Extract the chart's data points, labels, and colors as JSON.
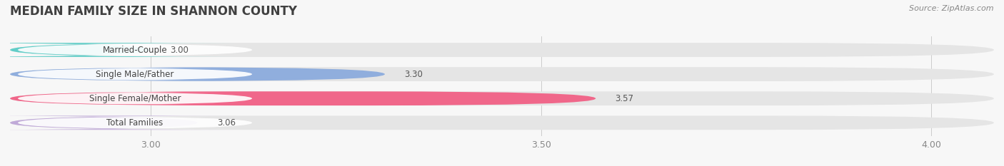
{
  "title": "MEDIAN FAMILY SIZE IN SHANNON COUNTY",
  "source": "Source: ZipAtlas.com",
  "categories": [
    "Married-Couple",
    "Single Male/Father",
    "Single Female/Mother",
    "Total Families"
  ],
  "values": [
    3.0,
    3.3,
    3.57,
    3.06
  ],
  "bar_colors": [
    "#62cec8",
    "#90aedd",
    "#f0678a",
    "#c0aad8"
  ],
  "xlim_left": 2.82,
  "xlim_right": 4.08,
  "xticks": [
    3.0,
    3.5,
    4.0
  ],
  "bar_height": 0.58,
  "figsize": [
    14.06,
    2.33
  ],
  "dpi": 100,
  "background_color": "#f7f7f7",
  "bar_background_color": "#e5e5e5",
  "title_fontsize": 12,
  "label_fontsize": 8.5,
  "value_fontsize": 8.5,
  "tick_fontsize": 9,
  "source_fontsize": 8
}
